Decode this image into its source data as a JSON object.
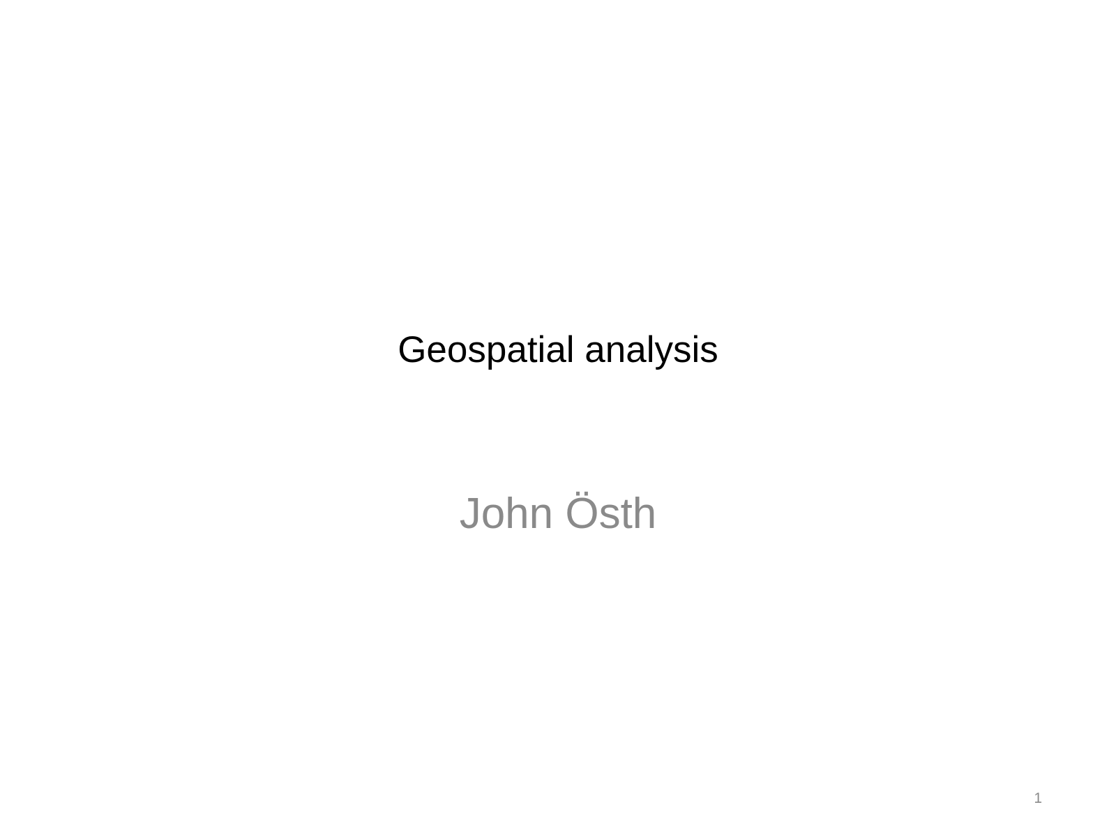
{
  "slide": {
    "title": "Geospatial analysis",
    "subtitle": "John Östh",
    "page_number": "1"
  },
  "colors": {
    "background": "#ffffff",
    "title": "#000000",
    "subtitle": "#8a8a8a",
    "page_number": "#8a8a8a"
  }
}
